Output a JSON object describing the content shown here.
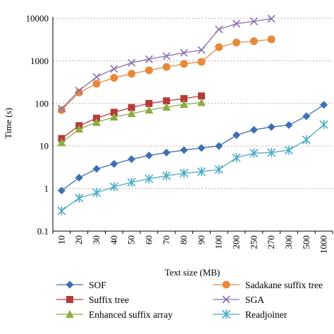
{
  "chart_data": {
    "type": "line",
    "xlabel": "Text size (MB)",
    "ylabel": "Time (s)",
    "yscale": "log",
    "ylim": [
      0.1,
      10000
    ],
    "y_ticks": [
      "0.1",
      "1",
      "10",
      "100",
      "1000",
      "10000"
    ],
    "categories": [
      "10",
      "20",
      "30",
      "40",
      "50",
      "60",
      "70",
      "80",
      "90",
      "100",
      "200",
      "250",
      "270",
      "300",
      "500",
      "1000"
    ],
    "grid": "horizontal dotted",
    "legend_placement": "bottom",
    "series": [
      {
        "name": "SOF",
        "color": "#3d6fb3",
        "marker": "diamond",
        "values": [
          0.9,
          1.8,
          2.9,
          3.8,
          4.9,
          6.0,
          7.0,
          8.0,
          9.0,
          10.0,
          18.0,
          24.0,
          28.0,
          31.0,
          50.0,
          93.0
        ]
      },
      {
        "name": "Sadakane suffix tree",
        "color": "#e8893a",
        "marker": "circle",
        "values": [
          70,
          180,
          290,
          400,
          500,
          600,
          720,
          850,
          950,
          2100,
          2700,
          2900,
          3200,
          null,
          null,
          null
        ]
      },
      {
        "name": "Suffix tree",
        "color": "#b83a3a",
        "marker": "square",
        "values": [
          15,
          30,
          45,
          62,
          80,
          100,
          115,
          130,
          150,
          null,
          null,
          null,
          null,
          null,
          null,
          null
        ]
      },
      {
        "name": "SGA",
        "color": "#8a6fb0",
        "marker": "x",
        "values": [
          75,
          200,
          420,
          650,
          900,
          1100,
          1300,
          1550,
          1800,
          5500,
          7500,
          8500,
          9800,
          null,
          null,
          null
        ]
      },
      {
        "name": "Enhanced suffix array",
        "color": "#8cae3f",
        "marker": "triangle",
        "values": [
          12,
          25,
          36,
          48,
          58,
          70,
          82,
          95,
          105,
          null,
          null,
          null,
          null,
          null,
          null,
          null
        ]
      },
      {
        "name": "Readjoiner",
        "color": "#4aacc5",
        "marker": "star",
        "values": [
          0.3,
          0.6,
          0.8,
          1.1,
          1.4,
          1.7,
          2.0,
          2.3,
          2.5,
          2.8,
          5.3,
          6.8,
          7.0,
          8.0,
          14.0,
          32.0
        ]
      }
    ]
  }
}
